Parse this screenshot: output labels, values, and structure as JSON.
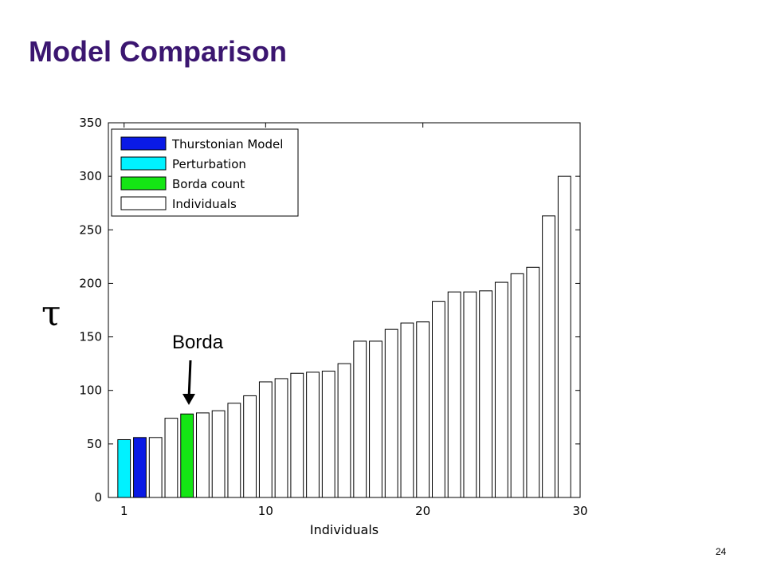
{
  "slide": {
    "title": "Model Comparison",
    "page_number": "24",
    "annotation": "Borda"
  },
  "chart_data": {
    "type": "bar",
    "xlabel": "Individuals",
    "ylabel": "τ",
    "ylim": [
      0,
      350
    ],
    "xlim": [
      0,
      30
    ],
    "yticks": [
      0,
      50,
      100,
      150,
      200,
      250,
      300,
      350
    ],
    "xticks": [
      1,
      10,
      20,
      30
    ],
    "legend_position": "top-left",
    "legend": [
      {
        "label": "Thurstonian Model",
        "color": "#0a1ae6"
      },
      {
        "label": "Perturbation",
        "color": "#00f2ff"
      },
      {
        "label": "Borda count",
        "color": "#14e614"
      },
      {
        "label": "Individuals",
        "color": "#ffffff"
      }
    ],
    "bars": [
      {
        "x": 1,
        "value": 54,
        "series": 1
      },
      {
        "x": 2,
        "value": 56,
        "series": 0
      },
      {
        "x": 3,
        "value": 56,
        "series": 3
      },
      {
        "x": 4,
        "value": 74,
        "series": 3
      },
      {
        "x": 5,
        "value": 78,
        "series": 2
      },
      {
        "x": 6,
        "value": 79,
        "series": 3
      },
      {
        "x": 7,
        "value": 81,
        "series": 3
      },
      {
        "x": 8,
        "value": 88,
        "series": 3
      },
      {
        "x": 9,
        "value": 95,
        "series": 3
      },
      {
        "x": 10,
        "value": 108,
        "series": 3
      },
      {
        "x": 11,
        "value": 111,
        "series": 3
      },
      {
        "x": 12,
        "value": 116,
        "series": 3
      },
      {
        "x": 13,
        "value": 117,
        "series": 3
      },
      {
        "x": 14,
        "value": 118,
        "series": 3
      },
      {
        "x": 15,
        "value": 125,
        "series": 3
      },
      {
        "x": 16,
        "value": 146,
        "series": 3
      },
      {
        "x": 17,
        "value": 146,
        "series": 3
      },
      {
        "x": 18,
        "value": 157,
        "series": 3
      },
      {
        "x": 19,
        "value": 163,
        "series": 3
      },
      {
        "x": 20,
        "value": 164,
        "series": 3
      },
      {
        "x": 21,
        "value": 183,
        "series": 3
      },
      {
        "x": 22,
        "value": 192,
        "series": 3
      },
      {
        "x": 23,
        "value": 192,
        "series": 3
      },
      {
        "x": 24,
        "value": 193,
        "series": 3
      },
      {
        "x": 25,
        "value": 201,
        "series": 3
      },
      {
        "x": 26,
        "value": 209,
        "series": 3
      },
      {
        "x": 27,
        "value": 215,
        "series": 3
      },
      {
        "x": 28,
        "value": 263,
        "series": 3
      },
      {
        "x": 29,
        "value": 300,
        "series": 3
      }
    ]
  }
}
